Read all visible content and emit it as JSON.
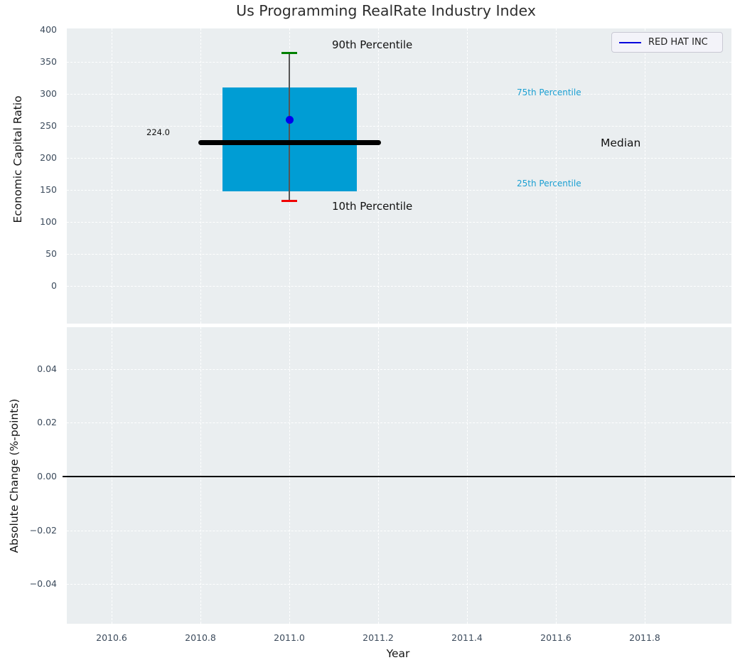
{
  "title": "Us Programming RealRate Industry Index",
  "legend": {
    "label": "RED HAT INC"
  },
  "axes": {
    "top": {
      "ylabel": "Economic Capital Ratio"
    },
    "bottom": {
      "ylabel": "Absolute Change (%-points)",
      "xlabel": "Year"
    }
  },
  "annotations": {
    "p90_label": "90th Percentile",
    "p10_label": "10th Percentile",
    "p75_label": "75th Percentile",
    "p25_label": "25th Percentile",
    "median_label": "Median",
    "median_value_label": "224.0"
  },
  "colors": {
    "box_fill": "#009dd4",
    "p90_cap": "#008000",
    "p10_cap": "#f00000",
    "whisker": "#555555",
    "median_line": "#000000",
    "company_dot": "#0000ee",
    "percentile_text": "#1b9fd2",
    "zero_line": "#000000"
  },
  "chart_data": {
    "type": "box",
    "title": "Us Programming RealRate Industry Index",
    "xlabel": "Year",
    "x_center": 2011.0,
    "xlim": [
      2010.5,
      2011.99
    ],
    "xticks": [
      {
        "label": "2010.6",
        "value": 2010.6
      },
      {
        "label": "2010.8",
        "value": 2010.8
      },
      {
        "label": "2011.0",
        "value": 2011.0
      },
      {
        "label": "2011.2",
        "value": 2011.2
      },
      {
        "label": "2011.4",
        "value": 2011.4
      },
      {
        "label": "2011.6",
        "value": 2011.6
      },
      {
        "label": "2011.8",
        "value": 2011.8
      }
    ],
    "subplot_top": {
      "ylabel": "Economic Capital Ratio",
      "ylim": [
        -59,
        402
      ],
      "yticks": [
        {
          "label": "400",
          "value": 400
        },
        {
          "label": "350",
          "value": 350
        },
        {
          "label": "300",
          "value": 300
        },
        {
          "label": "250",
          "value": 250
        },
        {
          "label": "200",
          "value": 200
        },
        {
          "label": "150",
          "value": 150
        },
        {
          "label": "100",
          "value": 100
        },
        {
          "label": "50",
          "value": 50
        },
        {
          "label": "0",
          "value": 0
        }
      ],
      "box": {
        "p10": 133,
        "p25": 148,
        "median": 224.0,
        "p75": 310,
        "p90": 364
      },
      "company": {
        "name": "RED HAT INC",
        "value": 260
      },
      "legend_position": "upper right"
    },
    "subplot_bottom": {
      "ylabel": "Absolute Change (%-points)",
      "ylim": [
        -0.0555,
        0.0555
      ],
      "yticks": [
        {
          "label": "0.04",
          "value": 0.04
        },
        {
          "label": "0.02",
          "value": 0.02
        },
        {
          "label": "0.00",
          "value": 0.0
        },
        {
          "label": "−0.02",
          "value": -0.02
        },
        {
          "label": "−0.04",
          "value": -0.04
        }
      ],
      "zero_line_value": 0.0,
      "series": []
    },
    "grid": true,
    "grid_style": "white-dashed"
  }
}
